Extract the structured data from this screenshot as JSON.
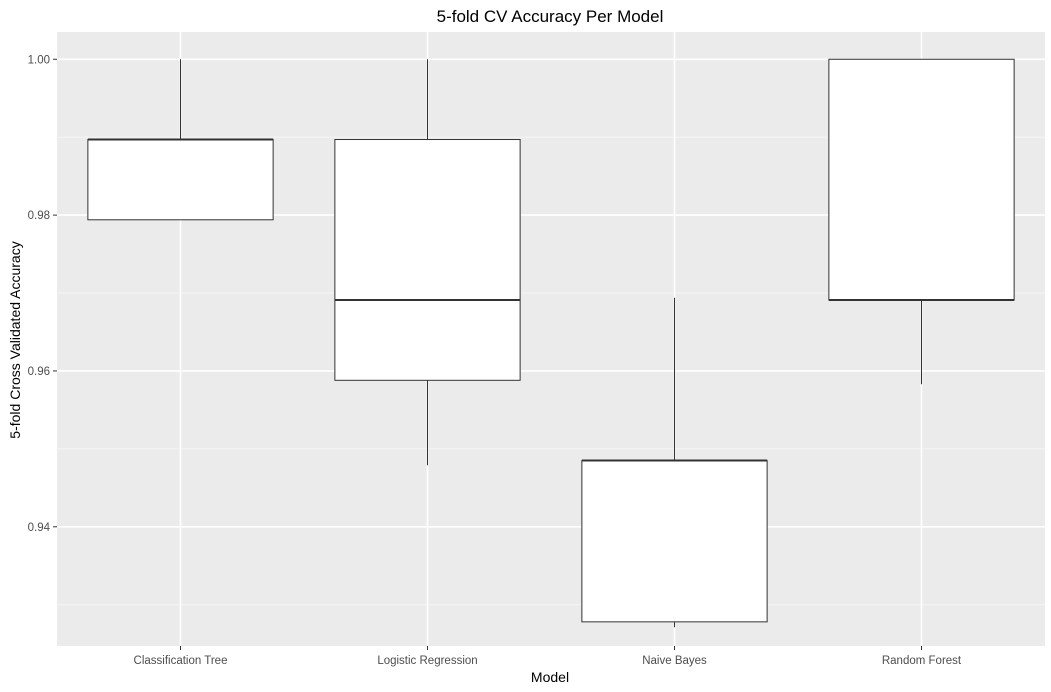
{
  "chart_data": {
    "type": "boxplot",
    "title": "5-fold CV Accuracy Per Model",
    "xlabel": "Model",
    "ylabel": "5-fold Cross Validated Accuracy",
    "ylim": [
      0.9247,
      1.0035
    ],
    "yticks": [
      0.94,
      0.96,
      0.98,
      1.0
    ],
    "ytick_labels": [
      "0.94",
      "0.96",
      "0.98",
      "1.00"
    ],
    "grid": true,
    "legend": "none",
    "colors": {
      "panel_background": "#ebebeb",
      "grid_major": "#ffffff",
      "grid_minor": "#f5f5f5",
      "box_fill": "#ffffff",
      "box_stroke": "#333333",
      "tick_label": "#4d4d4d"
    },
    "categories": [
      "Classification Tree",
      "Logistic Regression",
      "Naive Bayes",
      "Random Forest"
    ],
    "boxes": [
      {
        "category": "Classification Tree",
        "min": 0.9794,
        "q1": 0.9794,
        "median": 0.9897,
        "q3": 0.9897,
        "max": 1.0
      },
      {
        "category": "Logistic Regression",
        "min": 0.9479,
        "q1": 0.9588,
        "median": 0.9691,
        "q3": 0.9897,
        "max": 1.0
      },
      {
        "category": "Naive Bayes",
        "min": 0.9271,
        "q1": 0.9278,
        "median": 0.9485,
        "q3": 0.9485,
        "max": 0.9694
      },
      {
        "category": "Random Forest",
        "min": 0.9583,
        "q1": 0.9691,
        "median": 0.9691,
        "q3": 1.0,
        "max": 1.0
      }
    ]
  }
}
